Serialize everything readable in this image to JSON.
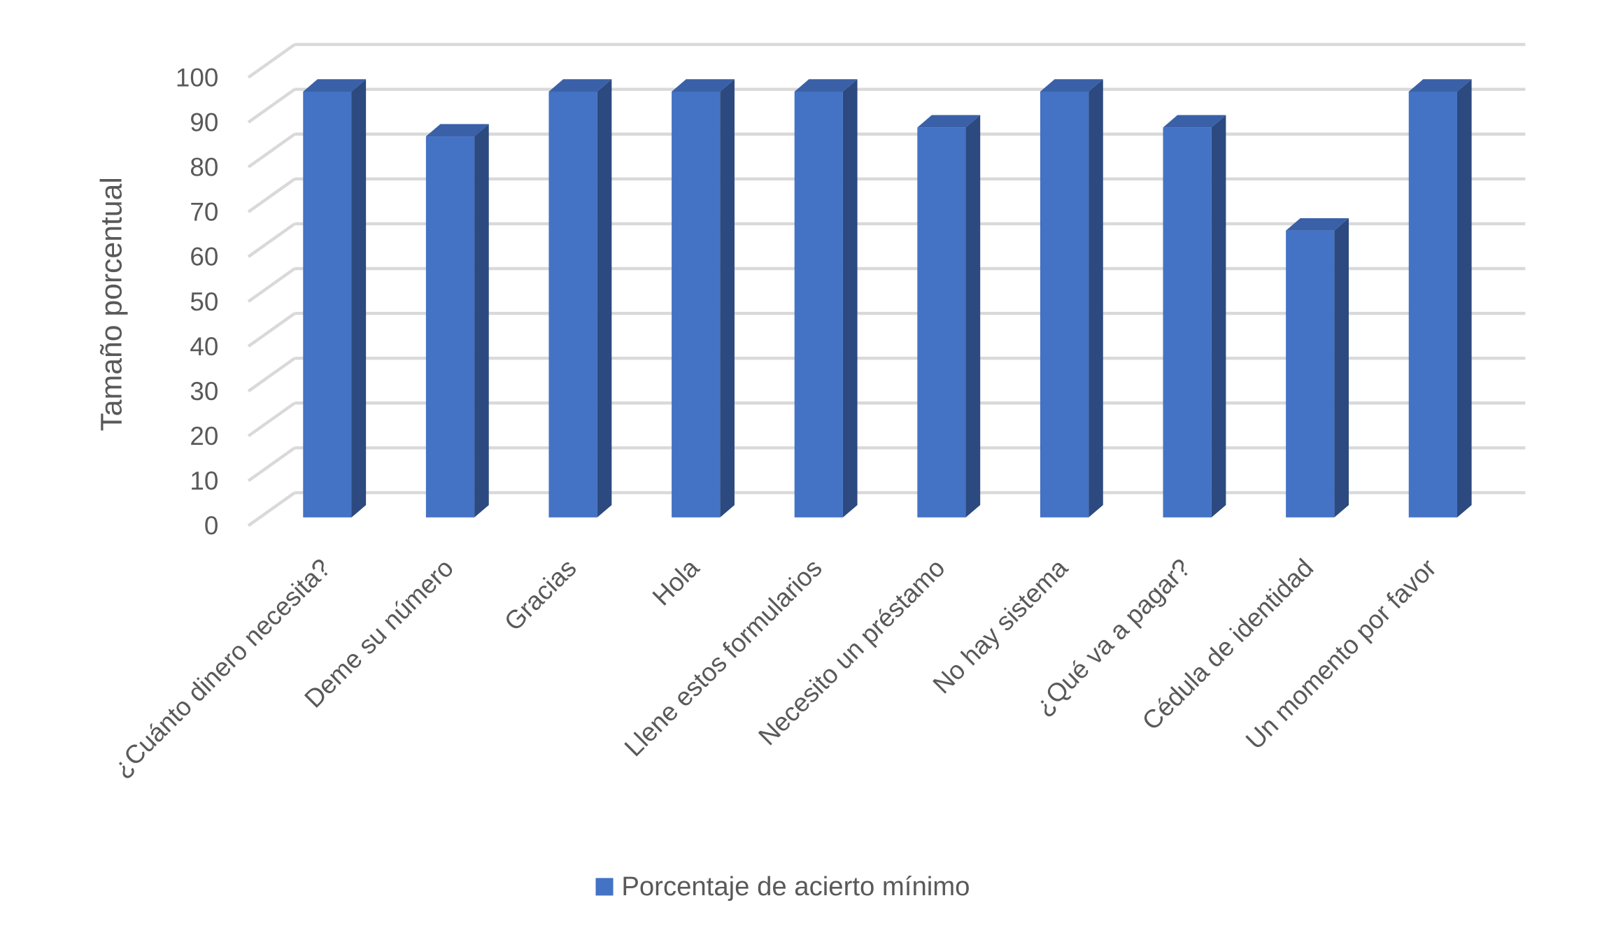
{
  "chart_data": {
    "type": "bar",
    "y_label": "Tamaño porcentual",
    "categories": [
      "¿Cuánto dinero necesita?",
      "Deme su número",
      "Gracias",
      "Hola",
      "Llene estos formularios",
      "Necesito un préstamo",
      "No hay sistema",
      "¿Qué va a pagar?",
      "Cédula de identidad",
      "Un momento por favor"
    ],
    "series": [
      {
        "name": "Porcentaje de acierto mínimo",
        "color": "#4472c4",
        "values": [
          95,
          85,
          95,
          95,
          95,
          87,
          95,
          87,
          64,
          95
        ]
      }
    ],
    "ylim": [
      0,
      100
    ],
    "yticks": [
      0,
      10,
      20,
      30,
      40,
      50,
      60,
      70,
      80,
      90,
      100
    ],
    "grid": true,
    "legend": "bottom"
  }
}
